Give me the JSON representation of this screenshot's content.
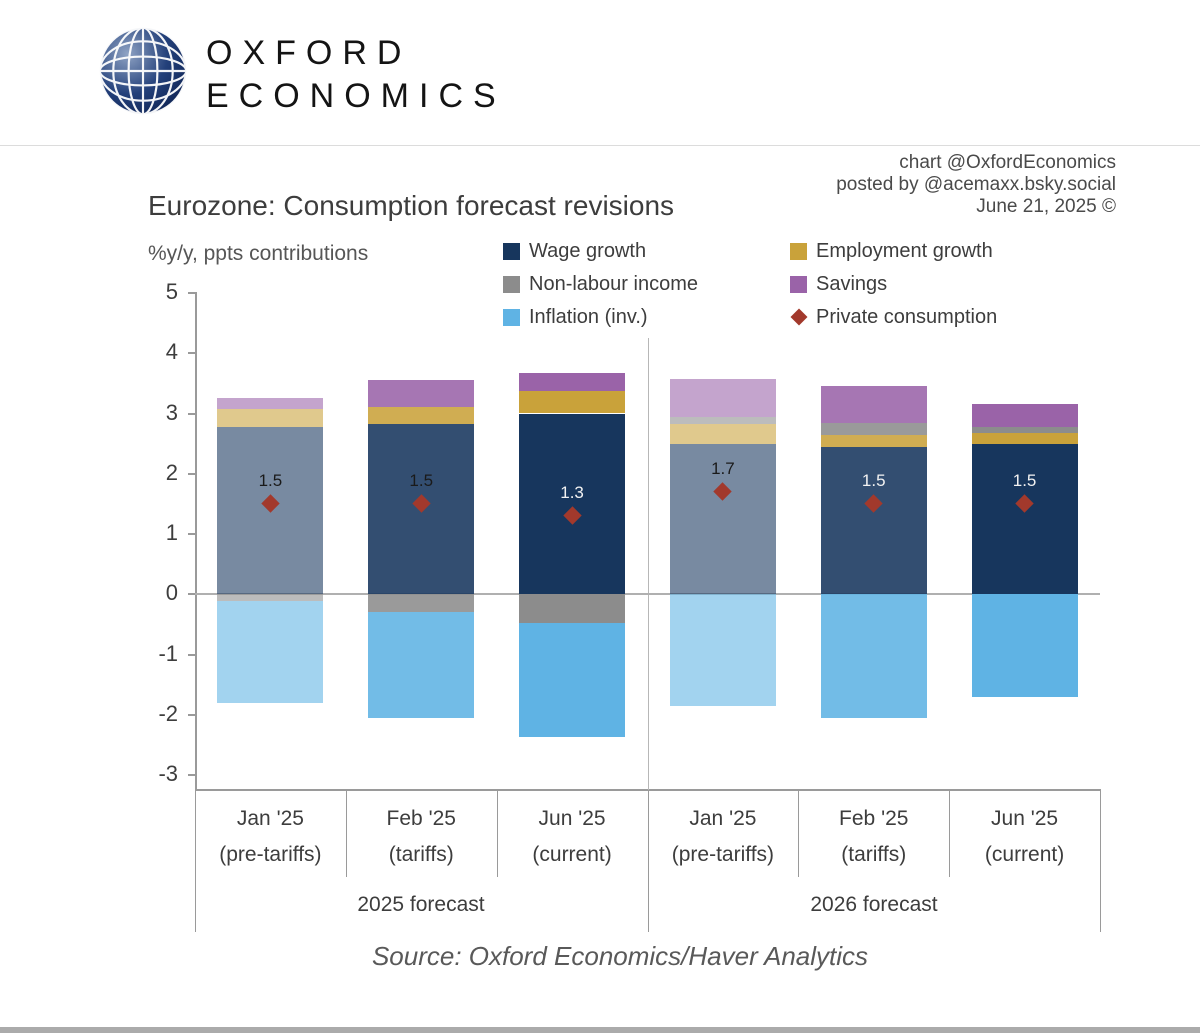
{
  "header": {
    "brand_line1": "OXFORD",
    "brand_line2": "ECONOMICS"
  },
  "attribution": {
    "line1": "chart @OxfordEconomics",
    "line2": "posted by @acemaxx.bsky.social",
    "line3": "June 21, 2025 ©"
  },
  "chart_data": {
    "type": "bar",
    "stacked": true,
    "title": "Eurozone: Consumption forecast revisions",
    "subtitle": "%y/y, ppts contributions",
    "ylim": [
      -3,
      5
    ],
    "yticks": [
      5,
      4,
      3,
      2,
      1,
      0,
      -1,
      -2,
      -3
    ],
    "grid": "zero-line-only",
    "legend_position": "top-right",
    "series_colors": {
      "wage_growth": "#17365d",
      "employment_growth": "#c9a23a",
      "non_labour_income": "#8c8c8c",
      "savings": "#9a63a8",
      "inflation_inv": "#5fb3e4"
    },
    "marker_color": "#a2392c",
    "legend": [
      {
        "label": "Wage growth",
        "color": "#17365d",
        "shape": "square"
      },
      {
        "label": "Employment growth",
        "color": "#c9a23a",
        "shape": "square"
      },
      {
        "label": "Non-labour income",
        "color": "#8c8c8c",
        "shape": "square"
      },
      {
        "label": "Savings",
        "color": "#9a63a8",
        "shape": "square"
      },
      {
        "label": "Inflation (inv.)",
        "color": "#5fb3e4",
        "shape": "square"
      },
      {
        "label": "Private consumption",
        "color": "#a2392c",
        "shape": "diamond"
      }
    ],
    "groups": [
      {
        "label": "2025 forecast"
      },
      {
        "label": "2026 forecast"
      }
    ],
    "categories": [
      {
        "line1": "Jan '25",
        "line2": "(pre-tariffs)",
        "group": 0
      },
      {
        "line1": "Feb '25",
        "line2": "(tariffs)",
        "group": 0
      },
      {
        "line1": "Jun '25",
        "line2": "(current)",
        "group": 0
      },
      {
        "line1": "Jan '25",
        "line2": "(pre-tariffs)",
        "group": 1
      },
      {
        "line1": "Feb '25",
        "line2": "(tariffs)",
        "group": 1
      },
      {
        "line1": "Jun '25",
        "line2": "(current)",
        "group": 1
      }
    ],
    "bars": [
      {
        "opacity": 0.58,
        "marker": 1.5,
        "label": "1.5",
        "label_color": "#1a1a1a",
        "segments_pos": [
          {
            "name": "wage_growth",
            "value": 2.78
          },
          {
            "name": "employment_growth",
            "value": 0.3
          },
          {
            "name": "savings",
            "value": 0.17
          }
        ],
        "segments_neg": [
          {
            "name": "non_labour_income",
            "value": 0.12
          },
          {
            "name": "inflation_inv",
            "value": 1.68
          }
        ]
      },
      {
        "opacity": 0.88,
        "marker": 1.5,
        "label": "1.5",
        "label_color": "#1a1a1a",
        "segments_pos": [
          {
            "name": "wage_growth",
            "value": 2.83
          },
          {
            "name": "employment_growth",
            "value": 0.27
          },
          {
            "name": "savings",
            "value": 0.45
          }
        ],
        "segments_neg": [
          {
            "name": "non_labour_income",
            "value": 0.3
          },
          {
            "name": "inflation_inv",
            "value": 1.75
          }
        ]
      },
      {
        "opacity": 1,
        "marker": 1.3,
        "label": "1.3",
        "label_color": "#f2f2f2",
        "segments_pos": [
          {
            "name": "wage_growth",
            "value": 3.0
          },
          {
            "name": "employment_growth",
            "value": 0.38
          },
          {
            "name": "savings",
            "value": 0.3
          }
        ],
        "segments_neg": [
          {
            "name": "non_labour_income",
            "value": 0.47
          },
          {
            "name": "inflation_inv",
            "value": 1.9
          }
        ]
      },
      {
        "opacity": 0.58,
        "marker": 1.7,
        "label": "1.7",
        "label_color": "#1a1a1a",
        "segments_pos": [
          {
            "name": "wage_growth",
            "value": 2.5
          },
          {
            "name": "employment_growth",
            "value": 0.33
          },
          {
            "name": "non_labour_income",
            "value": 0.12
          },
          {
            "name": "savings",
            "value": 0.63
          }
        ],
        "segments_neg": [
          {
            "name": "inflation_inv",
            "value": 1.85
          }
        ]
      },
      {
        "opacity": 0.88,
        "marker": 1.5,
        "label": "1.5",
        "label_color": "#f2f2f2",
        "segments_pos": [
          {
            "name": "wage_growth",
            "value": 2.44
          },
          {
            "name": "employment_growth",
            "value": 0.2
          },
          {
            "name": "non_labour_income",
            "value": 0.2
          },
          {
            "name": "savings",
            "value": 0.61
          }
        ],
        "segments_neg": [
          {
            "name": "inflation_inv",
            "value": 2.05
          }
        ]
      },
      {
        "opacity": 1,
        "marker": 1.5,
        "label": "1.5",
        "label_color": "#f2f2f2",
        "segments_pos": [
          {
            "name": "wage_growth",
            "value": 2.5
          },
          {
            "name": "employment_growth",
            "value": 0.18
          },
          {
            "name": "non_labour_income",
            "value": 0.1
          },
          {
            "name": "savings",
            "value": 0.38
          }
        ],
        "segments_neg": [
          {
            "name": "inflation_inv",
            "value": 1.7
          }
        ]
      }
    ],
    "source": "Source: Oxford Economics/Haver Analytics"
  }
}
